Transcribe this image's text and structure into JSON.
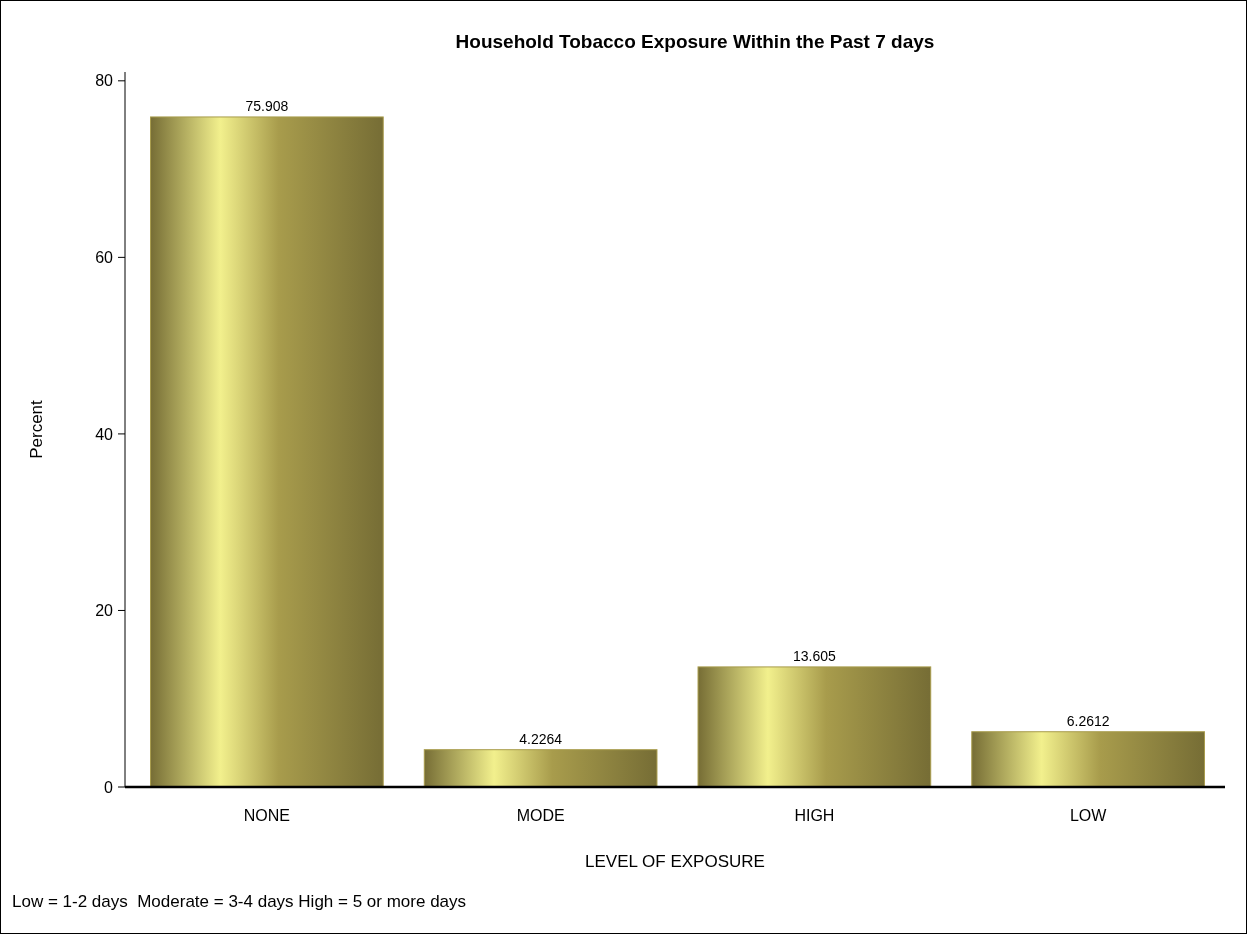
{
  "chart_data": {
    "type": "bar",
    "title": "Household Tobacco Exposure Within the Past 7 days",
    "xlabel": "LEVEL OF EXPOSURE",
    "ylabel": "Percent",
    "categories": [
      "NONE",
      "MODE",
      "HIGH",
      "LOW"
    ],
    "values": [
      75.908,
      4.2264,
      13.605,
      6.2612
    ],
    "color": "#a89c4c",
    "ylim": [
      0,
      81
    ],
    "yticks": [
      0,
      20,
      40,
      60,
      80
    ],
    "grid": false,
    "data_labels": true,
    "annotations": [
      "Low = 1-2 days  Moderate = 3-4 days High = 5 or more days"
    ]
  }
}
